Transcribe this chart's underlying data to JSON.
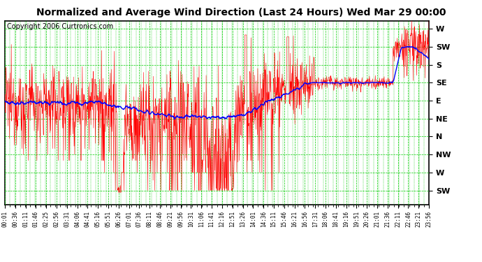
{
  "title": "Normalized and Average Wind Direction (Last 24 Hours) Wed Mar 29 00:00",
  "copyright": "Copyright 2006 Curtronics.com",
  "bg_color": "#ffffff",
  "plot_bg_color": "#ffffff",
  "grid_color": "#00cc00",
  "ytick_labels": [
    "W",
    "SW",
    "S",
    "SE",
    "E",
    "NE",
    "N",
    "NW",
    "W",
    "SW"
  ],
  "ytick_values": [
    360,
    315,
    270,
    225,
    180,
    135,
    90,
    45,
    0,
    -45
  ],
  "ylim": [
    -80,
    380
  ],
  "xtick_labels": [
    "00:01",
    "00:36",
    "01:11",
    "01:46",
    "02:25",
    "02:56",
    "03:31",
    "04:06",
    "04:41",
    "05:16",
    "05:51",
    "06:26",
    "07:01",
    "07:36",
    "08:11",
    "08:46",
    "09:21",
    "09:56",
    "10:31",
    "11:06",
    "11:41",
    "12:16",
    "12:51",
    "13:26",
    "14:01",
    "14:36",
    "15:11",
    "15:46",
    "16:21",
    "16:56",
    "17:31",
    "18:06",
    "18:41",
    "19:16",
    "19:51",
    "20:26",
    "21:01",
    "21:36",
    "22:11",
    "22:46",
    "23:21",
    "23:56"
  ],
  "red_line_color": "#ff0000",
  "blue_line_color": "#0000ff",
  "title_fontsize": 10,
  "copyright_fontsize": 7,
  "ytick_fontsize": 8,
  "xtick_fontsize": 5.5
}
